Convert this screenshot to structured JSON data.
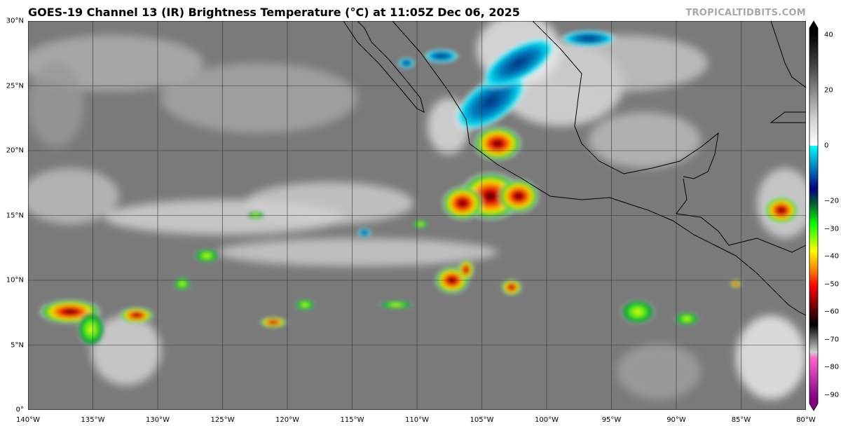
{
  "title": "GOES-19 Channel 13 (IR) Brightness Temperature (°C) at 11:05Z Dec 06, 2025",
  "credit": "TROPICALTIDBITS.COM",
  "map": {
    "lon_range": [
      -140,
      -80
    ],
    "lat_range": [
      0,
      30
    ],
    "lat_labels": [
      "30°N",
      "25°N",
      "20°N",
      "15°N",
      "10°N",
      "5°N",
      "0°"
    ],
    "lon_labels": [
      "140°W",
      "135°W",
      "130°W",
      "125°W",
      "120°W",
      "115°W",
      "110°W",
      "105°W",
      "100°W",
      "95°W",
      "90°W",
      "85°W",
      "80°W"
    ]
  },
  "colorbar": {
    "range": [
      -90,
      40
    ],
    "ticks": [
      "40",
      "20",
      "0",
      "−20",
      "−30",
      "−40",
      "−50",
      "−60",
      "−70",
      "−80",
      "−90"
    ],
    "colors": {
      "warm": "#000000",
      "mid": "#808080",
      "cold_white": "#ffffff",
      "cyan": "#00ffff",
      "blue": "#000080",
      "green": "#00ff00",
      "yellow": "#ffff00",
      "orange": "#ff8000",
      "red": "#ff0000",
      "darkred": "#600000",
      "pink": "#ff66cc",
      "purple": "#800080"
    }
  }
}
